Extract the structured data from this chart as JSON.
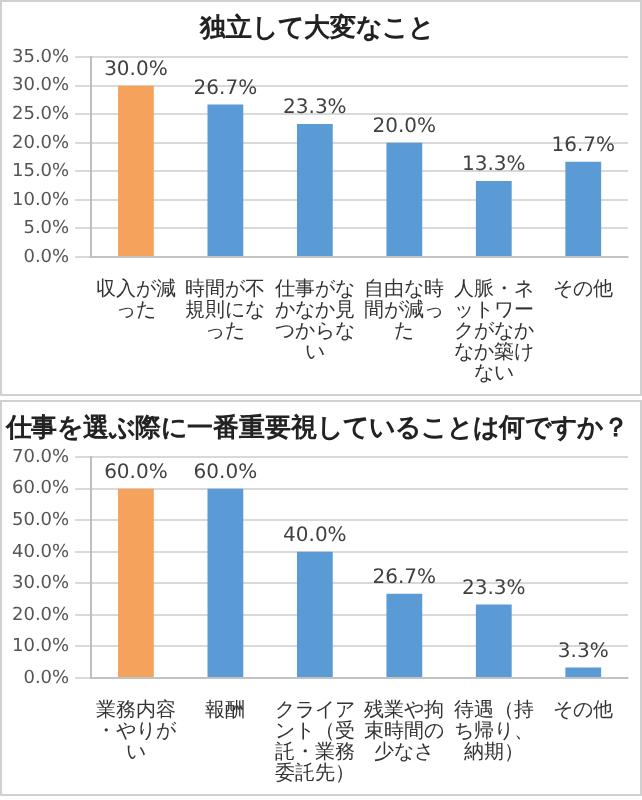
{
  "chart_data": [
    {
      "type": "bar",
      "title": "独立して大変なこと",
      "categories": [
        "収入が減った",
        "時間が不規則になった",
        "仕事がなかなか見つからない",
        "自由な時間が減った",
        "人脈・ネットワークがなかなか築けない",
        "その他"
      ],
      "values": [
        30.0,
        26.7,
        23.3,
        20.0,
        13.3,
        16.7
      ],
      "value_labels": [
        "30.0%",
        "26.7%",
        "23.3%",
        "20.0%",
        "13.3%",
        "16.7%"
      ],
      "colors": [
        "#f5a35c",
        "#5b9bd5",
        "#5b9bd5",
        "#5b9bd5",
        "#5b9bd5",
        "#5b9bd5"
      ],
      "ylim": [
        0,
        35
      ],
      "yticks": [
        {
          "value": 0,
          "label": "0.0%"
        },
        {
          "value": 5,
          "label": "5.0%"
        },
        {
          "value": 10,
          "label": "10.0%"
        },
        {
          "value": 15,
          "label": "15.0%"
        },
        {
          "value": 20,
          "label": "20.0%"
        },
        {
          "value": 25,
          "label": "25.0%"
        },
        {
          "value": 30,
          "label": "30.0%"
        },
        {
          "value": 35,
          "label": "35.0%"
        }
      ],
      "grid": "y"
    },
    {
      "type": "bar",
      "title": "仕事を選ぶ際に一番重要視していることは何ですか？",
      "categories": [
        "業務内容・やりがい",
        "報酬",
        "クライアント（受託・業務委託先）",
        "残業や拘束時間の少なさ",
        "待遇（持ち帰り、納期）",
        "その他"
      ],
      "values": [
        60.0,
        60.0,
        40.0,
        26.7,
        23.3,
        3.3
      ],
      "value_labels": [
        "60.0%",
        "60.0%",
        "40.0%",
        "26.7%",
        "23.3%",
        "3.3%"
      ],
      "colors": [
        "#f5a35c",
        "#5b9bd5",
        "#5b9bd5",
        "#5b9bd5",
        "#5b9bd5",
        "#5b9bd5"
      ],
      "ylim": [
        0,
        70
      ],
      "yticks": [
        {
          "value": 0,
          "label": "0.0%"
        },
        {
          "value": 10,
          "label": "10.0%"
        },
        {
          "value": 20,
          "label": "20.0%"
        },
        {
          "value": 30,
          "label": "30.0%"
        },
        {
          "value": 40,
          "label": "40.0%"
        },
        {
          "value": 50,
          "label": "50.0%"
        },
        {
          "value": 60,
          "label": "60.0%"
        },
        {
          "value": 70,
          "label": "70.0%"
        }
      ],
      "grid": "y"
    }
  ]
}
